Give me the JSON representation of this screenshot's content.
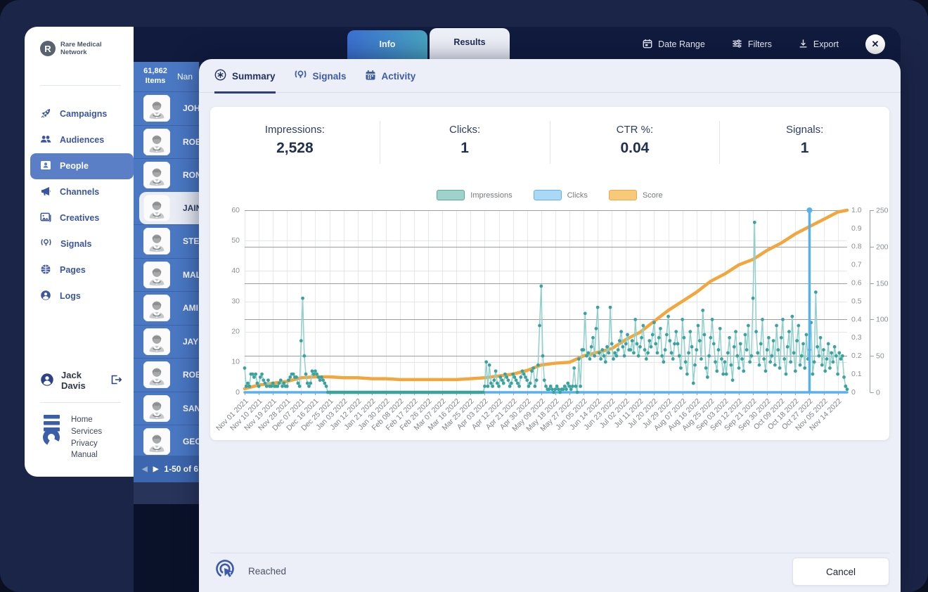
{
  "topbar": {
    "tabs": [
      {
        "label": "Info",
        "active": false
      },
      {
        "label": "Results",
        "active": true
      }
    ],
    "actions": [
      {
        "label": "Date Range",
        "icon": "calendar-icon"
      },
      {
        "label": "Filters",
        "icon": "sliders-icon"
      },
      {
        "label": "Export",
        "icon": "download-icon"
      }
    ],
    "close_label": "✕"
  },
  "sidebar": {
    "brand": "Rare Medical Network",
    "items": [
      {
        "label": "Campaigns",
        "icon": "rocket-icon",
        "active": false
      },
      {
        "label": "Audiences",
        "icon": "users-icon",
        "active": false
      },
      {
        "label": "People",
        "icon": "contact-card-icon",
        "active": true
      },
      {
        "label": "Channels",
        "icon": "megaphone-icon",
        "active": false
      },
      {
        "label": "Creatives",
        "icon": "image-icon",
        "active": false
      },
      {
        "label": "Signals",
        "icon": "signal-bulb-icon",
        "active": false
      },
      {
        "label": "Pages",
        "icon": "globe-icon",
        "active": false
      },
      {
        "label": "Logs",
        "icon": "person-circle-icon",
        "active": false
      }
    ],
    "user": {
      "name": "Jack Davis"
    },
    "footer_links": [
      "Home",
      "Services",
      "Privacy",
      "Manual"
    ]
  },
  "people_list": {
    "count": "61,862",
    "count_label": "Items",
    "name_header": "Nan",
    "rows": [
      {
        "name": "JOH",
        "selected": false
      },
      {
        "name": "ROB",
        "selected": false
      },
      {
        "name": "RON",
        "selected": false
      },
      {
        "name": "JAIN",
        "selected": true
      },
      {
        "name": "STE",
        "selected": false
      },
      {
        "name": "MAL",
        "selected": false
      },
      {
        "name": "AMI",
        "selected": false
      },
      {
        "name": "JAY",
        "selected": false
      },
      {
        "name": "ROB",
        "selected": false
      },
      {
        "name": "SAN",
        "selected": false
      },
      {
        "name": "GEO",
        "selected": false
      }
    ],
    "pagination": "1-50 of 6",
    "prev_arrow": "◀",
    "next_arrow": "▶"
  },
  "panel": {
    "tabs": [
      {
        "label": "Summary",
        "icon": "summary-star-icon",
        "active": true
      },
      {
        "label": "Signals",
        "icon": "signal-bulb-icon",
        "active": false
      },
      {
        "label": "Activity",
        "icon": "calendar-icon",
        "active": false
      }
    ],
    "stats": [
      {
        "label": "Impressions:",
        "value": "2,528"
      },
      {
        "label": "Clicks:",
        "value": "1"
      },
      {
        "label": "CTR %:",
        "value": "0.04"
      },
      {
        "label": "Signals:",
        "value": "1"
      }
    ],
    "footer": {
      "status": "Reached",
      "cancel": "Cancel"
    }
  },
  "chart_data": {
    "type": "line",
    "tick_interval_days": 9,
    "domain_days": [
      0,
      384
    ],
    "x_tick_labels": [
      "Nov 01 2021",
      "Nov 10 2021",
      "Nov 19 2021",
      "Nov 28 2021",
      "Dec 07 2021",
      "Dec 16 2021",
      "Dec 25 2021",
      "Jan 03 2022",
      "Jan 12 2022",
      "Jan 21 2022",
      "Jan 30 2022",
      "Feb 08 2022",
      "Feb 17 2022",
      "Feb 26 2022",
      "Mar 07 2022",
      "Mar 16 2022",
      "Mar 25 2022",
      "Apr 03 2022",
      "Apr 12 2022",
      "Apr 21 2022",
      "Apr 30 2022",
      "May 09 2022",
      "May 18 2022",
      "May 27 2022",
      "Jun 05 2022",
      "Jun 14 2022",
      "Jun 23 2022",
      "Jul 02 2022",
      "Jul 11 2022",
      "Jul 20 2022",
      "Jul 29 2022",
      "Aug 07 2022",
      "Aug 16 2022",
      "Aug 25 2022",
      "Sep 03 2022",
      "Sep 12 2022",
      "Sep 21 2022",
      "Sep 30 2022",
      "Oct 09 2022",
      "Oct 18 2022",
      "Oct 27 2022",
      "Nov 05 2022",
      "Nov 14 2022"
    ],
    "left_axis": {
      "range": [
        0,
        60
      ],
      "ticks": [
        0,
        10,
        20,
        30,
        40,
        50,
        60
      ]
    },
    "right_axis_score": {
      "range": [
        0,
        1
      ],
      "ticks": [
        0,
        0.1,
        0.2,
        0.3,
        0.4,
        0.5,
        0.6,
        0.7,
        0.8,
        0.9,
        1.0
      ]
    },
    "right_axis_secondary": {
      "range": [
        0,
        250
      ],
      "ticks": [
        0,
        50,
        100,
        150,
        200,
        250
      ]
    },
    "legend": [
      {
        "name": "Impressions",
        "fill": "#9ed3cc",
        "border": "#5aa79e"
      },
      {
        "name": "Clicks",
        "fill": "#a9d9f7",
        "border": "#66b1e4"
      },
      {
        "name": "Score",
        "fill": "#f9c97a",
        "border": "#f0a845"
      }
    ],
    "series": {
      "impressions": {
        "axis": "left",
        "color_line": "#8fd0ca",
        "color_dot": "#3ba29e",
        "daily_values": [
          8,
          2,
          3,
          2,
          6,
          6,
          5,
          6,
          3,
          2,
          5,
          6,
          4,
          3,
          2,
          4,
          2,
          2,
          3,
          2,
          2,
          2,
          3,
          4,
          2,
          3,
          2,
          2,
          4,
          5,
          6,
          6,
          5,
          5,
          3,
          2,
          17,
          31,
          12,
          6,
          3,
          2,
          3,
          7,
          6,
          7,
          6,
          5,
          4,
          5,
          4,
          3,
          2,
          0,
          0,
          0,
          0,
          0,
          0,
          0,
          0,
          0,
          0,
          0,
          0,
          0,
          0,
          0,
          0,
          0,
          0,
          0,
          0,
          0,
          0,
          0,
          0,
          0,
          0,
          0,
          0,
          0,
          0,
          0,
          0,
          0,
          0,
          0,
          0,
          0,
          0,
          0,
          0,
          0,
          0,
          0,
          0,
          0,
          0,
          0,
          0,
          0,
          0,
          0,
          0,
          0,
          0,
          0,
          0,
          0,
          0,
          0,
          0,
          0,
          0,
          0,
          0,
          0,
          0,
          0,
          0,
          0,
          0,
          0,
          0,
          0,
          0,
          0,
          0,
          0,
          0,
          0,
          0,
          0,
          0,
          0,
          0,
          0,
          0,
          0,
          0,
          0,
          0,
          0,
          0,
          0,
          0,
          0,
          0,
          0,
          0,
          0,
          0,
          2,
          10,
          2,
          9,
          3,
          2,
          4,
          7,
          3,
          2,
          5,
          4,
          3,
          6,
          5,
          4,
          2,
          3,
          6,
          5,
          4,
          3,
          2,
          5,
          7,
          6,
          5,
          4,
          2,
          3,
          7,
          8,
          2,
          4,
          9,
          22,
          35,
          12,
          4,
          2,
          1,
          1,
          2,
          1,
          0,
          1,
          2,
          1,
          0,
          1,
          1,
          2,
          1,
          3,
          2,
          1,
          2,
          8,
          2,
          0,
          11,
          2,
          14,
          14,
          26,
          12,
          13,
          11,
          15,
          18,
          12,
          21,
          28,
          13,
          11,
          14,
          12,
          10,
          15,
          13,
          28,
          16,
          11,
          13,
          12,
          14,
          17,
          20,
          15,
          12,
          16,
          19,
          14,
          14,
          17,
          13,
          24,
          16,
          12,
          15,
          18,
          22,
          14,
          11,
          13,
          17,
          15,
          19,
          23,
          16,
          13,
          18,
          21,
          12,
          10,
          14,
          19,
          25,
          17,
          13,
          11,
          16,
          20,
          16,
          12,
          8,
          24,
          18,
          10,
          6,
          13,
          20,
          15,
          3,
          9,
          14,
          22,
          17,
          11,
          27,
          19,
          8,
          5,
          12,
          18,
          24,
          16,
          10,
          7,
          14,
          21,
          11,
          6,
          10,
          6,
          13,
          18,
          9,
          4,
          15,
          20,
          12,
          8,
          16,
          11,
          7,
          19,
          14,
          22,
          10,
          12,
          31,
          56,
          20,
          13,
          9,
          16,
          24,
          11,
          7,
          14,
          18,
          10,
          12,
          17,
          9,
          22,
          14,
          8,
          18,
          24,
          11,
          6,
          15,
          20,
          10,
          25,
          13,
          7,
          17,
          22,
          9,
          12,
          16,
          8,
          19,
          11,
          14,
          23,
          6,
          10,
          33,
          15,
          12,
          18,
          9,
          14,
          7,
          11,
          16,
          8,
          13,
          10,
          15,
          12,
          6,
          13,
          11,
          12,
          5,
          2,
          1
        ]
      },
      "clicks": {
        "axis": "score",
        "color": "#58b1ef",
        "baseline": 0,
        "spike_day": 360,
        "spike_value": 1
      },
      "score": {
        "axis": "score",
        "color": "#f2a63c",
        "points": [
          [
            0,
            0.02
          ],
          [
            9,
            0.04
          ],
          [
            18,
            0.05
          ],
          [
            27,
            0.06
          ],
          [
            36,
            0.08
          ],
          [
            45,
            0.085
          ],
          [
            54,
            0.085
          ],
          [
            63,
            0.08
          ],
          [
            72,
            0.08
          ],
          [
            81,
            0.075
          ],
          [
            90,
            0.075
          ],
          [
            99,
            0.07
          ],
          [
            108,
            0.07
          ],
          [
            117,
            0.07
          ],
          [
            126,
            0.07
          ],
          [
            135,
            0.07
          ],
          [
            144,
            0.075
          ],
          [
            153,
            0.08
          ],
          [
            162,
            0.09
          ],
          [
            171,
            0.1
          ],
          [
            180,
            0.12
          ],
          [
            189,
            0.15
          ],
          [
            198,
            0.16
          ],
          [
            207,
            0.165
          ],
          [
            216,
            0.2
          ],
          [
            225,
            0.22
          ],
          [
            234,
            0.24
          ],
          [
            243,
            0.29
          ],
          [
            252,
            0.33
          ],
          [
            261,
            0.39
          ],
          [
            270,
            0.45
          ],
          [
            279,
            0.5
          ],
          [
            288,
            0.55
          ],
          [
            297,
            0.61
          ],
          [
            306,
            0.65
          ],
          [
            315,
            0.7
          ],
          [
            324,
            0.73
          ],
          [
            333,
            0.78
          ],
          [
            342,
            0.82
          ],
          [
            351,
            0.87
          ],
          [
            360,
            0.91
          ],
          [
            369,
            0.95
          ],
          [
            378,
            0.99
          ],
          [
            384,
            1.0
          ]
        ]
      }
    }
  }
}
